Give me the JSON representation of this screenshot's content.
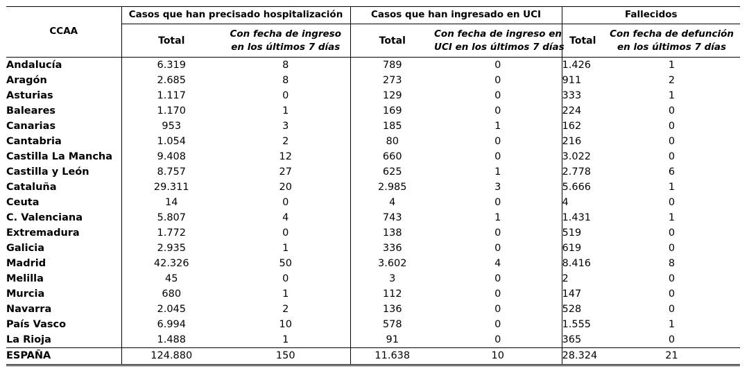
{
  "headers": {
    "ccaa": "CCAA",
    "group_hosp": "Casos que han precisado hospitalización",
    "group_uci": "Casos que han ingresado en UCI",
    "group_fall": "Fallecidos",
    "total": "Total",
    "hosp_sub_line1": "Con fecha de ingreso",
    "hosp_sub_line2": "en  los últimos 7 días",
    "uci_sub_line1": "Con fecha de ingreso en",
    "uci_sub_line2": "UCI en  los últimos 7 días",
    "fall_sub_line1": "Con fecha de defunción",
    "fall_sub_line2": "en  los últimos 7 días"
  },
  "rows": [
    {
      "ccaa": "Andalucía",
      "hosp_total": "6.319",
      "hosp_7d": "8",
      "uci_total": "789",
      "uci_7d": "0",
      "fall_total": "1.426",
      "fall_7d": "1"
    },
    {
      "ccaa": "Aragón",
      "hosp_total": "2.685",
      "hosp_7d": "8",
      "uci_total": "273",
      "uci_7d": "0",
      "fall_total": "911",
      "fall_7d": "2"
    },
    {
      "ccaa": "Asturias",
      "hosp_total": "1.117",
      "hosp_7d": "0",
      "uci_total": "129",
      "uci_7d": "0",
      "fall_total": "333",
      "fall_7d": "1"
    },
    {
      "ccaa": "Baleares",
      "hosp_total": "1.170",
      "hosp_7d": "1",
      "uci_total": "169",
      "uci_7d": "0",
      "fall_total": "224",
      "fall_7d": "0"
    },
    {
      "ccaa": "Canarias",
      "hosp_total": "953",
      "hosp_7d": "3",
      "uci_total": "185",
      "uci_7d": "1",
      "fall_total": "162",
      "fall_7d": "0"
    },
    {
      "ccaa": "Cantabria",
      "hosp_total": "1.054",
      "hosp_7d": "2",
      "uci_total": "80",
      "uci_7d": "0",
      "fall_total": "216",
      "fall_7d": "0"
    },
    {
      "ccaa": "Castilla La Mancha",
      "hosp_total": "9.408",
      "hosp_7d": "12",
      "uci_total": "660",
      "uci_7d": "0",
      "fall_total": "3.022",
      "fall_7d": "0"
    },
    {
      "ccaa": "Castilla y León",
      "hosp_total": "8.757",
      "hosp_7d": "27",
      "uci_total": "625",
      "uci_7d": "1",
      "fall_total": "2.778",
      "fall_7d": "6"
    },
    {
      "ccaa": "Cataluña",
      "hosp_total": "29.311",
      "hosp_7d": "20",
      "uci_total": "2.985",
      "uci_7d": "3",
      "fall_total": "5.666",
      "fall_7d": "1"
    },
    {
      "ccaa": "Ceuta",
      "hosp_total": "14",
      "hosp_7d": "0",
      "uci_total": "4",
      "uci_7d": "0",
      "fall_total": "4",
      "fall_7d": "0"
    },
    {
      "ccaa": "C. Valenciana",
      "hosp_total": "5.807",
      "hosp_7d": "4",
      "uci_total": "743",
      "uci_7d": "1",
      "fall_total": "1.431",
      "fall_7d": "1"
    },
    {
      "ccaa": "Extremadura",
      "hosp_total": "1.772",
      "hosp_7d": "0",
      "uci_total": "138",
      "uci_7d": "0",
      "fall_total": "519",
      "fall_7d": "0"
    },
    {
      "ccaa": "Galicia",
      "hosp_total": "2.935",
      "hosp_7d": "1",
      "uci_total": "336",
      "uci_7d": "0",
      "fall_total": "619",
      "fall_7d": "0"
    },
    {
      "ccaa": "Madrid",
      "hosp_total": "42.326",
      "hosp_7d": "50",
      "uci_total": "3.602",
      "uci_7d": "4",
      "fall_total": "8.416",
      "fall_7d": "8"
    },
    {
      "ccaa": "Melilla",
      "hosp_total": "45",
      "hosp_7d": "0",
      "uci_total": "3",
      "uci_7d": "0",
      "fall_total": "2",
      "fall_7d": "0"
    },
    {
      "ccaa": "Murcia",
      "hosp_total": "680",
      "hosp_7d": "1",
      "uci_total": "112",
      "uci_7d": "0",
      "fall_total": "147",
      "fall_7d": "0"
    },
    {
      "ccaa": "Navarra",
      "hosp_total": "2.045",
      "hosp_7d": "2",
      "uci_total": "136",
      "uci_7d": "0",
      "fall_total": "528",
      "fall_7d": "0"
    },
    {
      "ccaa": "País Vasco",
      "hosp_total": "6.994",
      "hosp_7d": "10",
      "uci_total": "578",
      "uci_7d": "0",
      "fall_total": "1.555",
      "fall_7d": "1"
    },
    {
      "ccaa": "La Rioja",
      "hosp_total": "1.488",
      "hosp_7d": "1",
      "uci_total": "91",
      "uci_7d": "0",
      "fall_total": "365",
      "fall_7d": "0"
    }
  ],
  "total_row": {
    "ccaa": "ESPAÑA",
    "hosp_total": "124.880",
    "hosp_7d": "150",
    "uci_total": "11.638",
    "uci_7d": "10",
    "fall_total": "28.324",
    "fall_7d": "21"
  }
}
